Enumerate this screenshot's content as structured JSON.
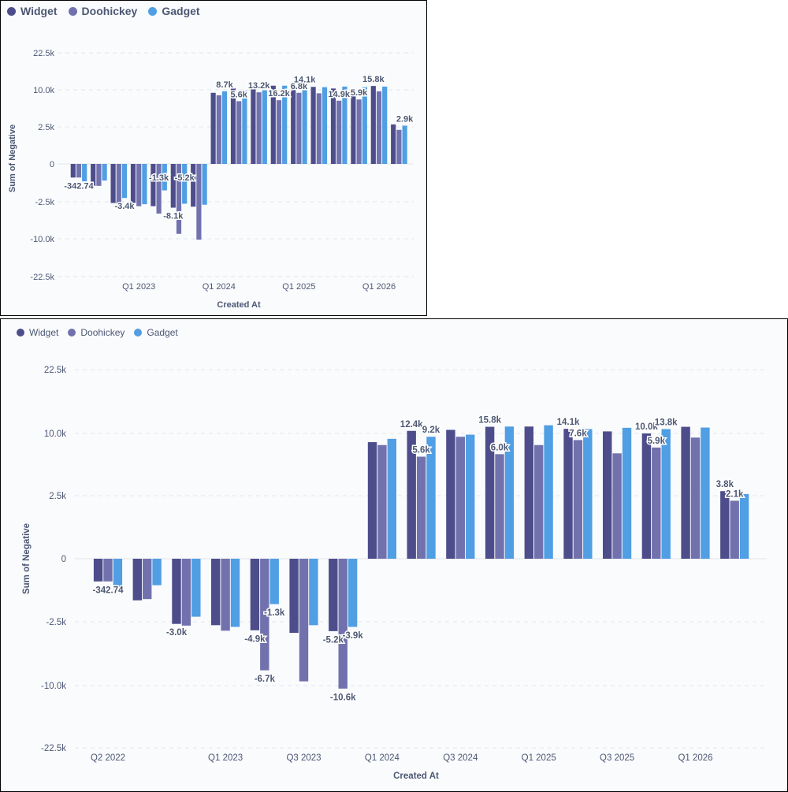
{
  "chart_data": [
    {
      "type": "bar",
      "id": "small",
      "xlabel": "Created At",
      "ylabel": "Sum of Negative",
      "y_ticks": [
        "22.5k",
        "10.0k",
        "2.5k",
        "0",
        "-2.5k",
        "-10.0k",
        "-22.5k"
      ],
      "x_tick_labels": [
        {
          "label": "Q1 2023",
          "group": 3
        },
        {
          "label": "Q1 2024",
          "group": 7
        },
        {
          "label": "Q1 2025",
          "group": 11
        },
        {
          "label": "Q1 2026",
          "group": 15
        }
      ],
      "legend": [
        {
          "name": "Widget",
          "color": "#4e4d8b"
        },
        {
          "name": "Doohickey",
          "color": "#7172ad"
        },
        {
          "name": "Gadget",
          "color": "#509ee3"
        }
      ],
      "categories": [
        "1",
        "2",
        "3",
        "4",
        "5",
        "6",
        "7",
        "8",
        "9",
        "10",
        "11",
        "12",
        "13",
        "14",
        "15",
        "16",
        "17"
      ],
      "series": [
        {
          "name": "Widget",
          "values": [
            -0.9,
            -1.45,
            -2.75,
            -2.85,
            -3.4,
            -3.7,
            -3.5,
            9.4,
            10.6,
            10.8,
            11.4,
            11.4,
            11.0,
            10.45,
            10.1,
            11.3,
            3.0
          ]
        },
        {
          "name": "Doohickey",
          "values": [
            -0.9,
            -1.45,
            -2.95,
            -3.4,
            -4.9,
            -9.0,
            -10.3,
            8.9,
            7.7,
            9.5,
            7.9,
            9.4,
            9.3,
            7.8,
            8.05,
            9.7,
            2.3
          ]
        },
        {
          "name": "Gadget",
          "values": [
            -1.15,
            -1.1,
            -2.25,
            -3.0,
            -1.75,
            -2.9,
            -3.1,
            9.7,
            9.8,
            9.9,
            11.4,
            11.2,
            10.9,
            11.1,
            10.9,
            11.1,
            2.75
          ]
        }
      ],
      "data_labels": [
        {
          "text": "-342.74",
          "group": 0,
          "series": 1,
          "pos": "below"
        },
        {
          "text": "-3.4k",
          "group": 2,
          "series": 2,
          "pos": "below"
        },
        {
          "text": "-1.3k",
          "group": 4,
          "series": 1,
          "pos": "above-neg"
        },
        {
          "text": "-8.1k",
          "group": 5,
          "series": 0,
          "pos": "below"
        },
        {
          "text": "-5.2k",
          "group": 5,
          "series": 2,
          "pos": "above-neg"
        },
        {
          "text": "8.7k",
          "group": 7,
          "series": 2,
          "pos": "above"
        },
        {
          "text": "5.6k",
          "group": 8,
          "series": 1,
          "pos": "above"
        },
        {
          "text": "13.2k",
          "group": 9,
          "series": 1,
          "pos": "above"
        },
        {
          "text": "16.2k",
          "group": 10,
          "series": 1,
          "pos": "above"
        },
        {
          "text": "6.8k",
          "group": 11,
          "series": 1,
          "pos": "above"
        },
        {
          "text": "14.1k",
          "group": 11,
          "series": 2,
          "pos": "above"
        },
        {
          "text": "14.9k",
          "group": 13,
          "series": 1,
          "pos": "above"
        },
        {
          "text": "5.9k",
          "group": 14,
          "series": 1,
          "pos": "above"
        },
        {
          "text": "15.8k",
          "group": 15,
          "series": 0,
          "pos": "above"
        },
        {
          "text": "2.9k",
          "group": 16,
          "series": 2,
          "pos": "above"
        }
      ]
    },
    {
      "type": "bar",
      "id": "large",
      "xlabel": "Created At",
      "ylabel": "Sum of Negative",
      "y_ticks": [
        "22.5k",
        "10.0k",
        "2.5k",
        "0",
        "-2.5k",
        "-10.0k",
        "-22.5k"
      ],
      "x_tick_labels": [
        {
          "label": "Q2 2022",
          "group": 0
        },
        {
          "label": "Q1 2023",
          "group": 3
        },
        {
          "label": "Q3 2023",
          "group": 5
        },
        {
          "label": "Q1 2024",
          "group": 7
        },
        {
          "label": "Q3 2024",
          "group": 9
        },
        {
          "label": "Q1 2025",
          "group": 11
        },
        {
          "label": "Q3 2025",
          "group": 13
        },
        {
          "label": "Q1 2026",
          "group": 15
        }
      ],
      "legend": [
        {
          "name": "Widget",
          "color": "#4e4d8b"
        },
        {
          "name": "Doohickey",
          "color": "#7172ad"
        },
        {
          "name": "Gadget",
          "color": "#509ee3"
        }
      ],
      "categories": [
        "1",
        "2",
        "3",
        "4",
        "5",
        "6",
        "7",
        "8",
        "9",
        "10",
        "11",
        "12",
        "13",
        "14",
        "15",
        "16",
        "17"
      ],
      "series": [
        {
          "name": "Widget",
          "values": [
            -0.9,
            -1.65,
            -2.75,
            -2.9,
            -3.5,
            -3.8,
            -3.6,
            8.95,
            10.5,
            10.7,
            11.3,
            11.35,
            10.9,
            10.4,
            10.0,
            11.3,
            3.05
          ]
        },
        {
          "name": "Doohickey",
          "values": [
            -0.9,
            -1.6,
            -2.95,
            -3.55,
            -8.2,
            -9.5,
            -10.6,
            8.6,
            7.2,
            9.6,
            7.5,
            8.6,
            9.2,
            7.6,
            8.3,
            9.5,
            2.3
          ]
        },
        {
          "name": "Gadget",
          "values": [
            -1.2,
            -1.05,
            -2.3,
            -3.1,
            -1.8,
            -2.9,
            -3.1,
            9.35,
            9.6,
            9.85,
            11.35,
            11.6,
            10.85,
            11.1,
            10.85,
            11.15,
            2.7
          ]
        }
      ],
      "data_labels": [
        {
          "text": "-342.74",
          "group": 0,
          "series": 1,
          "pos": "below"
        },
        {
          "text": "-3.0k",
          "group": 2,
          "series": 0,
          "pos": "below"
        },
        {
          "text": "-4.9k",
          "group": 4,
          "series": 0,
          "pos": "below"
        },
        {
          "text": "-1.3k",
          "group": 4,
          "series": 2,
          "pos": "below"
        },
        {
          "text": "-6.7k",
          "group": 4,
          "series": 1,
          "pos": "below"
        },
        {
          "text": "-5.2k",
          "group": 6,
          "series": 0,
          "pos": "below"
        },
        {
          "text": "-3.9k",
          "group": 6,
          "series": 2,
          "pos": "below"
        },
        {
          "text": "-10.6k",
          "group": 6,
          "series": 1,
          "pos": "below"
        },
        {
          "text": "12.4k",
          "group": 8,
          "series": 0,
          "pos": "above"
        },
        {
          "text": "5.6k",
          "group": 8,
          "series": 1,
          "pos": "above"
        },
        {
          "text": "9.2k",
          "group": 8,
          "series": 2,
          "pos": "above"
        },
        {
          "text": "15.8k",
          "group": 10,
          "series": 0,
          "pos": "above"
        },
        {
          "text": "6.0k",
          "group": 10,
          "series": 1,
          "pos": "above"
        },
        {
          "text": "14.1k",
          "group": 12,
          "series": 0,
          "pos": "above"
        },
        {
          "text": "7.6k",
          "group": 12,
          "series": 1,
          "pos": "above"
        },
        {
          "text": "10.0k",
          "group": 14,
          "series": 0,
          "pos": "above"
        },
        {
          "text": "5.9k",
          "group": 14,
          "series": 1,
          "pos": "above"
        },
        {
          "text": "13.8k",
          "group": 14,
          "series": 2,
          "pos": "above"
        },
        {
          "text": "3.8k",
          "group": 16,
          "series": 0,
          "pos": "above"
        },
        {
          "text": "2.1k",
          "group": 16,
          "series": 1,
          "pos": "above"
        }
      ]
    }
  ]
}
